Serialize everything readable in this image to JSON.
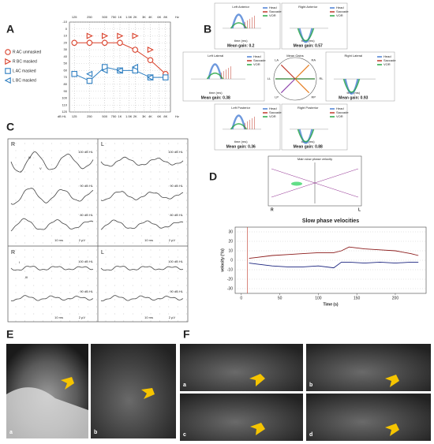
{
  "panel_labels": [
    "A",
    "B",
    "C",
    "D",
    "E",
    "F"
  ],
  "chart_data": [
    {
      "type": "line",
      "x_unit": "Hz",
      "y_unit": "dB HL",
      "xscale": "log",
      "y_inverted": true,
      "grid": true,
      "legend": "left",
      "xlim": [
        100,
        10000
      ],
      "xticks": [
        125,
        250,
        500,
        750,
        {
          "value": 1000,
          "label": "1K"
        },
        {
          "value": 1500,
          "label": "1.5K"
        },
        {
          "value": 2000,
          "label": "2K"
        },
        {
          "value": 3000,
          "label": "3K"
        },
        {
          "value": 4000,
          "label": "4K"
        },
        {
          "value": 6000,
          "label": "6K"
        },
        {
          "value": 8000,
          "label": "8K"
        }
      ],
      "ylim": [
        -10,
        120
      ],
      "yticks": [
        -10,
        0,
        10,
        20,
        30,
        40,
        50,
        60,
        70,
        80,
        90,
        100,
        110,
        120
      ],
      "series": [
        {
          "name": "R AC unmasked",
          "color": "#d9412b",
          "marker": "circle",
          "line": true,
          "x": [
            125,
            250,
            500,
            1000,
            2000,
            4000,
            8000
          ],
          "values": [
            20,
            20,
            20,
            20,
            30,
            45,
            65
          ]
        },
        {
          "name": "R BC masked",
          "color": "#d9412b",
          "marker": "triangle-right",
          "line": false,
          "x": [
            250,
            500,
            1000,
            2000,
            4000
          ],
          "values": [
            10,
            10,
            10,
            10,
            30
          ]
        },
        {
          "name": "L AC masked",
          "color": "#2f7fc1",
          "marker": "square",
          "line": true,
          "x": [
            125,
            250,
            500,
            1000,
            2000,
            4000,
            8000
          ],
          "values": [
            65,
            75,
            55,
            60,
            60,
            70,
            70
          ]
        },
        {
          "name": "L BC masked",
          "color": "#2f7fc1",
          "marker": "triangle-left",
          "line": false,
          "x": [
            250,
            500,
            1000,
            2000,
            4000
          ],
          "values": [
            65,
            60,
            60,
            55,
            70
          ]
        }
      ]
    },
    {
      "type": "line",
      "title": "Slow phase velocities",
      "x_label": "Time (s)",
      "y_label": "velocity (°/s)",
      "grid": true,
      "xlim": [
        -8,
        240
      ],
      "xticks": [
        0,
        50,
        100,
        150,
        200
      ],
      "ylim": [
        -35,
        35
      ],
      "yticks": [
        30,
        20,
        10,
        0,
        -10,
        -20,
        -30
      ],
      "x": [
        10,
        20,
        40,
        60,
        80,
        100,
        120,
        130,
        140,
        160,
        180,
        200,
        220,
        230
      ],
      "series": [
        {
          "color": "#8b1a1a",
          "values": [
            2,
            3,
            5,
            6,
            7,
            8,
            8,
            10,
            14,
            12,
            11,
            10,
            7,
            5
          ]
        },
        {
          "color": "#1a237e",
          "values": [
            -3,
            -4,
            -6,
            -7,
            -7,
            -6,
            -8,
            -2,
            -2,
            -3,
            -2,
            -3,
            -2,
            -2
          ]
        }
      ]
    }
  ],
  "vhit": {
    "panels": [
      {
        "title": "Left Anterior",
        "gain": "Mean gain: 0.2"
      },
      {
        "title": "Right Anterior",
        "gain": "Mean gain: 0.57"
      },
      {
        "title": "Left Lateral",
        "gain": "Mean gain: 0.38"
      },
      {
        "title": "Right Lateral",
        "gain": "Mean gain: 0.93"
      },
      {
        "title": "Left Posterior",
        "gain": "Mean gain: 0.36"
      },
      {
        "title": "Right Posterior",
        "gain": "Mean gain: 0.88"
      }
    ],
    "legend": [
      "Head",
      "Saccade",
      "VOR"
    ],
    "x_label": "time (ms)",
    "y_label": "head & eye velocity (°/s)",
    "center": {
      "title": "Mean Gains",
      "labels": [
        "LA",
        "RA",
        "LL",
        "RL",
        "LP",
        "RP"
      ]
    }
  },
  "abr": {
    "sides": [
      "R",
      "L"
    ],
    "levels": [
      "100 dB HL",
      "90 dB HL",
      "80 dB HL"
    ],
    "scale": [
      "10 ms",
      "2 µV"
    ],
    "peaks": [
      "I",
      "III",
      "V"
    ]
  },
  "spv_box": {
    "title": "Main slow phase velocity",
    "sides": [
      "R",
      "L"
    ]
  },
  "images": {
    "E": [
      "a",
      "b"
    ],
    "F": [
      "a",
      "b",
      "c",
      "d"
    ]
  }
}
